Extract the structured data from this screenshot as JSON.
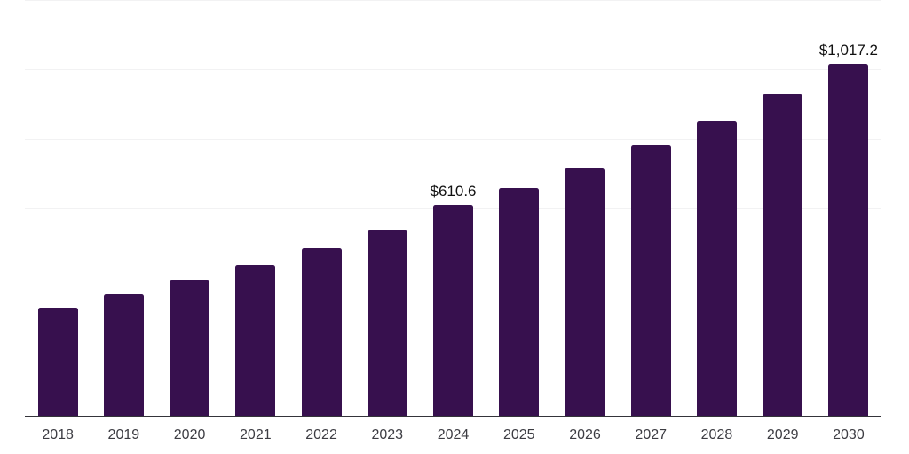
{
  "chart_data": {
    "type": "bar",
    "title": "",
    "xlabel": "",
    "ylabel": "",
    "categories": [
      "2018",
      "2019",
      "2020",
      "2021",
      "2022",
      "2023",
      "2024",
      "2025",
      "2026",
      "2027",
      "2028",
      "2029",
      "2030"
    ],
    "values": [
      314,
      353,
      392,
      436,
      486,
      540,
      610.6,
      658,
      716,
      781,
      851,
      929,
      1017.2
    ],
    "data_labels": [
      {
        "category": "2024",
        "text": "$610.6"
      },
      {
        "category": "2030",
        "text": "$1,017.2"
      }
    ],
    "ylim": [
      0,
      1200
    ],
    "gridline_step": 200,
    "grid": "horizontal-only",
    "legend": "none",
    "y_axis_labels_visible": false,
    "colors": {
      "bar": "#37104E",
      "gridline": "#F2F2F3",
      "axis_line": "#34343A",
      "data_label": "#111111",
      "tick_label": "#3C3C42",
      "background": "#FFFFFF"
    }
  }
}
